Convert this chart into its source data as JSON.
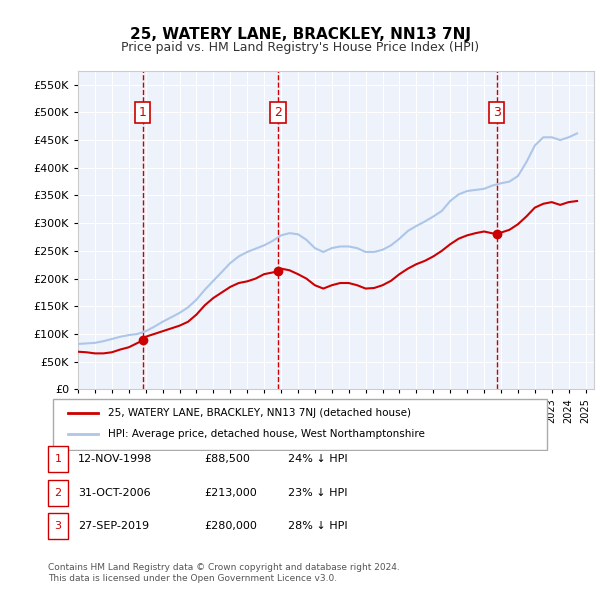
{
  "title": "25, WATERY LANE, BRACKLEY, NN13 7NJ",
  "subtitle": "Price paid vs. HM Land Registry's House Price Index (HPI)",
  "ylabel_ticks": [
    "£0",
    "£50K",
    "£100K",
    "£150K",
    "£200K",
    "£250K",
    "£300K",
    "£350K",
    "£400K",
    "£450K",
    "£500K",
    "£550K"
  ],
  "ytick_values": [
    0,
    50000,
    100000,
    150000,
    200000,
    250000,
    300000,
    350000,
    400000,
    450000,
    500000,
    550000
  ],
  "ylim": [
    0,
    575000
  ],
  "xlim_start": 1995.0,
  "xlim_end": 2025.5,
  "hpi_years": [
    1995.0,
    1995.5,
    1996.0,
    1996.5,
    1997.0,
    1997.5,
    1998.0,
    1998.5,
    1999.0,
    1999.5,
    2000.0,
    2000.5,
    2001.0,
    2001.5,
    2002.0,
    2002.5,
    2003.0,
    2003.5,
    2004.0,
    2004.5,
    2005.0,
    2005.5,
    2006.0,
    2006.5,
    2007.0,
    2007.5,
    2008.0,
    2008.5,
    2009.0,
    2009.5,
    2010.0,
    2010.5,
    2011.0,
    2011.5,
    2012.0,
    2012.5,
    2013.0,
    2013.5,
    2014.0,
    2014.5,
    2015.0,
    2015.5,
    2016.0,
    2016.5,
    2017.0,
    2017.5,
    2018.0,
    2018.5,
    2019.0,
    2019.5,
    2020.0,
    2020.5,
    2021.0,
    2021.5,
    2022.0,
    2022.5,
    2023.0,
    2023.5,
    2024.0,
    2024.5
  ],
  "hpi_values": [
    82000,
    83000,
    84000,
    87000,
    91000,
    95000,
    98000,
    100000,
    105000,
    113000,
    122000,
    130000,
    138000,
    148000,
    162000,
    180000,
    196000,
    212000,
    228000,
    240000,
    248000,
    254000,
    260000,
    268000,
    278000,
    282000,
    280000,
    270000,
    255000,
    248000,
    255000,
    258000,
    258000,
    255000,
    248000,
    248000,
    252000,
    260000,
    272000,
    286000,
    295000,
    303000,
    312000,
    322000,
    340000,
    352000,
    358000,
    360000,
    362000,
    368000,
    372000,
    375000,
    385000,
    410000,
    440000,
    455000,
    455000,
    450000,
    455000,
    462000
  ],
  "price_years": [
    1995.0,
    1995.5,
    1996.0,
    1996.5,
    1997.0,
    1997.5,
    1998.0,
    1998.83,
    1999.0,
    1999.5,
    2000.0,
    2000.5,
    2001.0,
    2001.5,
    2002.0,
    2002.5,
    2003.0,
    2003.5,
    2004.0,
    2004.5,
    2005.0,
    2005.5,
    2006.0,
    2006.83,
    2007.0,
    2007.5,
    2008.0,
    2008.5,
    2009.0,
    2009.5,
    2010.0,
    2010.5,
    2011.0,
    2011.5,
    2012.0,
    2012.5,
    2013.0,
    2013.5,
    2014.0,
    2014.5,
    2015.0,
    2015.5,
    2016.0,
    2016.5,
    2017.0,
    2017.5,
    2018.0,
    2018.5,
    2019.0,
    2019.75,
    2020.0,
    2020.5,
    2021.0,
    2021.5,
    2022.0,
    2022.5,
    2023.0,
    2023.5,
    2024.0,
    2024.5
  ],
  "price_values": [
    68000,
    67000,
    65000,
    65000,
    67000,
    72000,
    76000,
    88500,
    95000,
    100000,
    105000,
    110000,
    115000,
    122000,
    135000,
    152000,
    165000,
    175000,
    185000,
    192000,
    195000,
    200000,
    208000,
    213000,
    218000,
    215000,
    208000,
    200000,
    188000,
    182000,
    188000,
    192000,
    192000,
    188000,
    182000,
    183000,
    188000,
    196000,
    208000,
    218000,
    226000,
    232000,
    240000,
    250000,
    262000,
    272000,
    278000,
    282000,
    285000,
    280000,
    283000,
    288000,
    298000,
    312000,
    328000,
    335000,
    338000,
    333000,
    338000,
    340000
  ],
  "sale_points": [
    {
      "year": 1998.83,
      "price": 88500,
      "label": "1"
    },
    {
      "year": 2006.83,
      "price": 213000,
      "label": "2"
    },
    {
      "year": 2019.75,
      "price": 280000,
      "label": "3"
    }
  ],
  "sale_vlines": [
    1998.83,
    2006.83,
    2019.75
  ],
  "xtick_years": [
    1995,
    1996,
    1997,
    1998,
    1999,
    2000,
    2001,
    2002,
    2003,
    2004,
    2005,
    2006,
    2007,
    2008,
    2009,
    2010,
    2011,
    2012,
    2013,
    2014,
    2015,
    2016,
    2017,
    2018,
    2019,
    2020,
    2021,
    2022,
    2023,
    2024,
    2025
  ],
  "hpi_color": "#adc6e8",
  "price_color": "#cc0000",
  "vline_color": "#cc0000",
  "box_color": "#cc0000",
  "bg_color": "#eef3fb",
  "plot_bg": "#ffffff",
  "legend_label_price": "25, WATERY LANE, BRACKLEY, NN13 7NJ (detached house)",
  "legend_label_hpi": "HPI: Average price, detached house, West Northamptonshire",
  "table_rows": [
    {
      "num": "1",
      "date": "12-NOV-1998",
      "price": "£88,500",
      "hpi": "24% ↓ HPI"
    },
    {
      "num": "2",
      "date": "31-OCT-2006",
      "price": "£213,000",
      "hpi": "23% ↓ HPI"
    },
    {
      "num": "3",
      "date": "27-SEP-2019",
      "price": "£280,000",
      "hpi": "28% ↓ HPI"
    }
  ],
  "footnote": "Contains HM Land Registry data © Crown copyright and database right 2024.\nThis data is licensed under the Open Government Licence v3.0."
}
